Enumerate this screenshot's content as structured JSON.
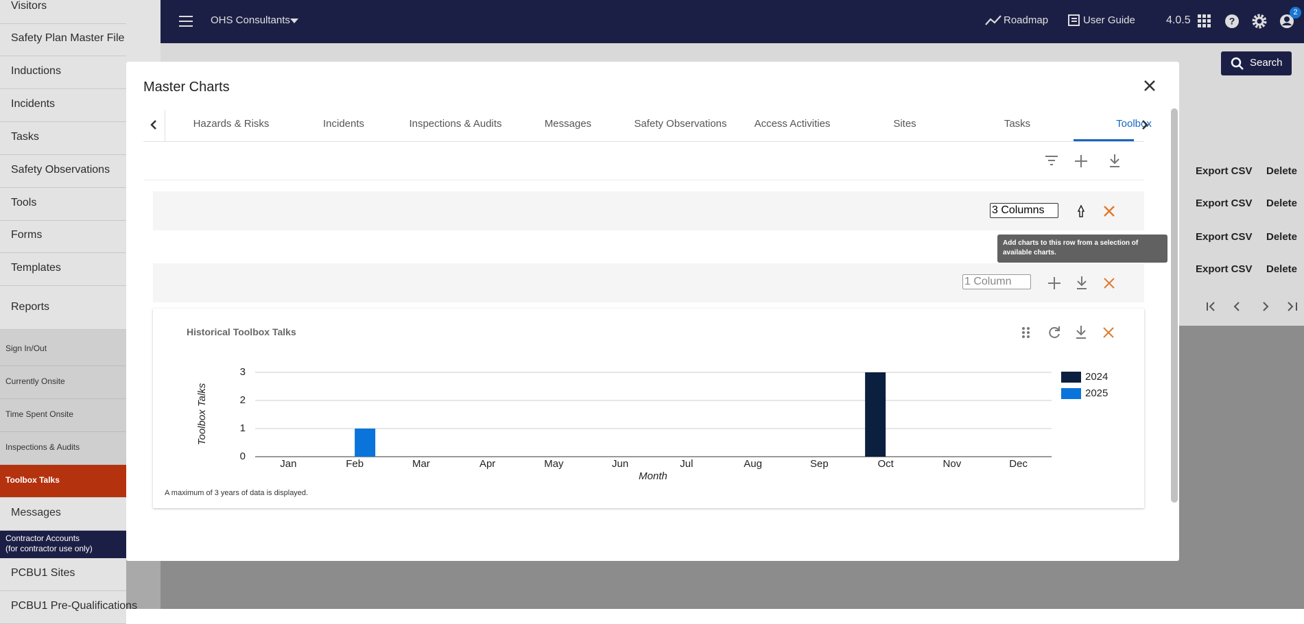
{
  "topbar": {
    "org": "OHS Consultants",
    "roadmap": "Roadmap",
    "user_guide": "User Guide",
    "version": "4.0.5",
    "badge": "2"
  },
  "sidebar": {
    "items": [
      "Visitors",
      "Safety Plan Master File",
      "Inductions",
      "Incidents",
      "Tasks",
      "Safety Observations",
      "Tools",
      "Forms",
      "Templates",
      "Reports"
    ],
    "sub_items": [
      "Sign In/Out",
      "Currently Onsite",
      "Time Spent Onsite",
      "Inspections & Audits",
      "Toolbox Talks",
      "Messages"
    ],
    "contractor_title": "Contractor Accounts",
    "contractor_note": "(for contractor use only)",
    "pcbu_items": [
      "PCBU1 Sites",
      "PCBU1 Pre-Qualifications"
    ]
  },
  "background": {
    "search": "Search",
    "rows": [
      [
        "Export CSV",
        "Delete"
      ],
      [
        "Export CSV",
        "Delete"
      ],
      [
        "Export CSV",
        "Delete"
      ],
      [
        "Export CSV",
        "Delete"
      ]
    ]
  },
  "modal": {
    "title": "Master Charts",
    "tabs": [
      "Hazards & Risks",
      "Incidents",
      "Inspections & Audits",
      "Messages",
      "Safety Observations",
      "Access Activities",
      "Sites",
      "Tasks",
      "Toolbox"
    ],
    "row1_select": "3 Columns",
    "tooltip": "Add charts to this row from a selection of available charts.",
    "row2_select": "1 Column",
    "note": "A maximum of 3 years of data is displayed."
  },
  "chart_data": {
    "type": "bar",
    "title": "Historical Toolbox Talks",
    "x_label": "Month",
    "y_label": "Toolbox Talks",
    "categories": [
      "Jan",
      "Feb",
      "Mar",
      "Apr",
      "May",
      "Jun",
      "Jul",
      "Aug",
      "Sep",
      "Oct",
      "Nov",
      "Dec"
    ],
    "series": [
      {
        "name": "2024",
        "color": "#0b1f3f",
        "values": [
          0,
          0,
          0,
          0,
          0,
          0,
          0,
          0,
          0,
          3,
          0,
          0
        ]
      },
      {
        "name": "2025",
        "color": "#0a74da",
        "values": [
          0,
          1,
          0,
          0,
          0,
          0,
          0,
          0,
          0,
          0,
          0,
          0
        ]
      }
    ],
    "ylim": [
      0,
      3
    ],
    "yticks": [
      0,
      1,
      2,
      3
    ],
    "grid": true
  }
}
